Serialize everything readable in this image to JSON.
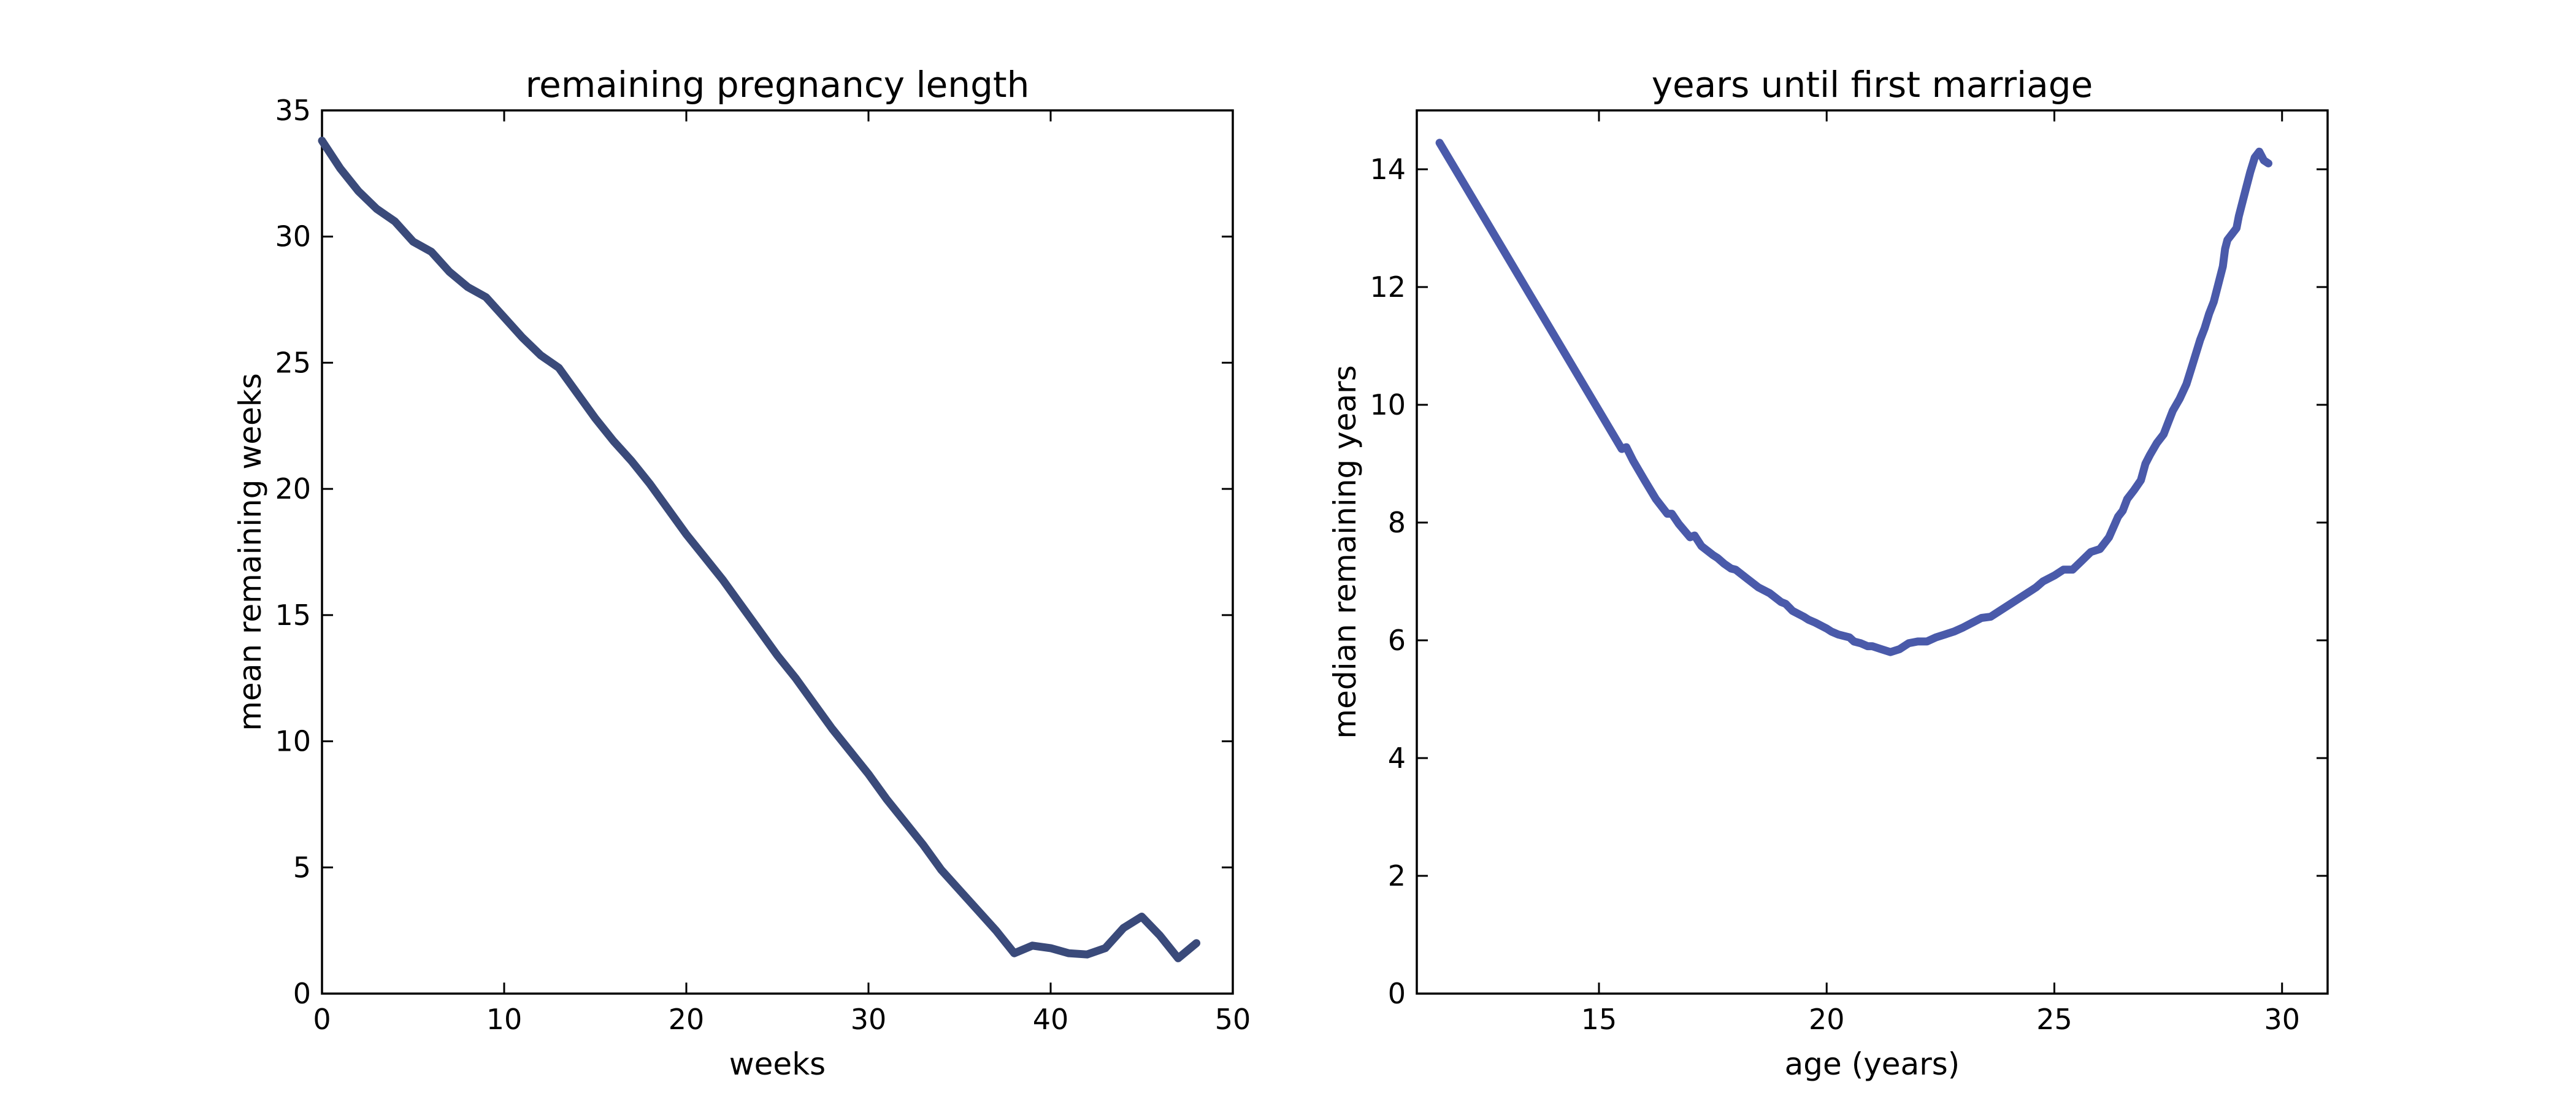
{
  "chart_data": [
    {
      "type": "line",
      "title": "remaining pregnancy length",
      "xlabel": "weeks",
      "ylabel": "mean remaining weeks",
      "xlim": [
        0,
        50
      ],
      "ylim": [
        0,
        35
      ],
      "xticks": [
        0,
        10,
        20,
        30,
        40,
        50
      ],
      "yticks": [
        0,
        5,
        10,
        15,
        20,
        25,
        30,
        35
      ],
      "grid": false,
      "color": "#3a4a7a",
      "series": [
        {
          "x": [
            0,
            1,
            2,
            3,
            4,
            5,
            6,
            7,
            8,
            9,
            10,
            11,
            12,
            13,
            14,
            15,
            16,
            17,
            18,
            19,
            20,
            21,
            22,
            23,
            24,
            25,
            26,
            27,
            28,
            29,
            30,
            31,
            32,
            33,
            34,
            35,
            36,
            37,
            38,
            39,
            40,
            41,
            42,
            43,
            44,
            45,
            46,
            47,
            48
          ],
          "y": [
            33.8,
            32.7,
            31.8,
            31.1,
            30.6,
            29.8,
            29.4,
            28.6,
            28.0,
            27.6,
            26.8,
            26.0,
            25.3,
            24.8,
            23.8,
            22.8,
            21.9,
            21.1,
            20.2,
            19.2,
            18.2,
            17.3,
            16.4,
            15.4,
            14.4,
            13.4,
            12.5,
            11.5,
            10.5,
            9.6,
            8.7,
            7.7,
            6.8,
            5.9,
            4.9,
            4.1,
            3.3,
            2.5,
            1.6,
            1.9,
            1.8,
            1.6,
            1.55,
            1.8,
            2.6,
            3.05,
            2.3,
            1.4,
            2.0
          ]
        }
      ]
    },
    {
      "type": "line",
      "title": "years until first marriage",
      "xlabel": "age (years)",
      "ylabel": "median remaining years",
      "xlim": [
        11,
        31
      ],
      "ylim": [
        0,
        15
      ],
      "xticks": [
        15,
        20,
        25,
        30
      ],
      "yticks": [
        0,
        2,
        4,
        6,
        8,
        10,
        12,
        14
      ],
      "grid": false,
      "color": "#4a5aaa",
      "series": [
        {
          "x": [
            11.5,
            12.0,
            12.5,
            13.0,
            13.5,
            14.0,
            14.5,
            15.0,
            15.5,
            15.6,
            15.75,
            16.0,
            16.25,
            16.5,
            16.6,
            16.75,
            17.0,
            17.1,
            17.25,
            17.5,
            17.6,
            17.75,
            17.9,
            18.0,
            18.25,
            18.5,
            18.75,
            19.0,
            19.1,
            19.25,
            19.5,
            19.6,
            19.75,
            20.0,
            20.1,
            20.25,
            20.5,
            20.6,
            20.75,
            20.9,
            21.0,
            21.2,
            21.4,
            21.6,
            21.8,
            22.0,
            22.2,
            22.4,
            22.6,
            22.8,
            23.0,
            23.2,
            23.4,
            23.6,
            23.8,
            24.0,
            24.2,
            24.5,
            24.6,
            24.75,
            25.0,
            25.2,
            25.4,
            25.6,
            25.8,
            26.0,
            26.2,
            26.4,
            26.5,
            26.6,
            26.75,
            26.9,
            27.0,
            27.1,
            27.25,
            27.4,
            27.5,
            27.6,
            27.75,
            27.9,
            28.0,
            28.1,
            28.2,
            28.3,
            28.4,
            28.5,
            28.6,
            28.7,
            28.75,
            28.8,
            28.9,
            29.0,
            29.05,
            29.1,
            29.15,
            29.2,
            29.3,
            29.4,
            29.5,
            29.6,
            29.7
          ],
          "y": [
            14.45,
            13.8,
            13.15,
            12.5,
            11.85,
            11.2,
            10.55,
            9.9,
            9.25,
            9.28,
            9.05,
            8.72,
            8.4,
            8.15,
            8.15,
            7.98,
            7.75,
            7.78,
            7.6,
            7.45,
            7.4,
            7.3,
            7.22,
            7.2,
            7.05,
            6.9,
            6.8,
            6.65,
            6.62,
            6.5,
            6.4,
            6.35,
            6.3,
            6.2,
            6.15,
            6.1,
            6.05,
            5.98,
            5.95,
            5.9,
            5.9,
            5.85,
            5.8,
            5.85,
            5.95,
            5.98,
            5.98,
            6.05,
            6.1,
            6.15,
            6.22,
            6.3,
            6.38,
            6.4,
            6.5,
            6.6,
            6.7,
            6.85,
            6.9,
            7.0,
            7.1,
            7.2,
            7.2,
            7.35,
            7.5,
            7.55,
            7.75,
            8.1,
            8.2,
            8.4,
            8.55,
            8.72,
            9.0,
            9.15,
            9.35,
            9.5,
            9.7,
            9.9,
            10.1,
            10.35,
            10.6,
            10.85,
            11.1,
            11.3,
            11.55,
            11.75,
            12.05,
            12.35,
            12.65,
            12.8,
            12.9,
            13.0,
            13.2,
            13.35,
            13.5,
            13.65,
            13.95,
            14.2,
            14.3,
            14.15,
            14.1
          ]
        }
      ]
    }
  ]
}
